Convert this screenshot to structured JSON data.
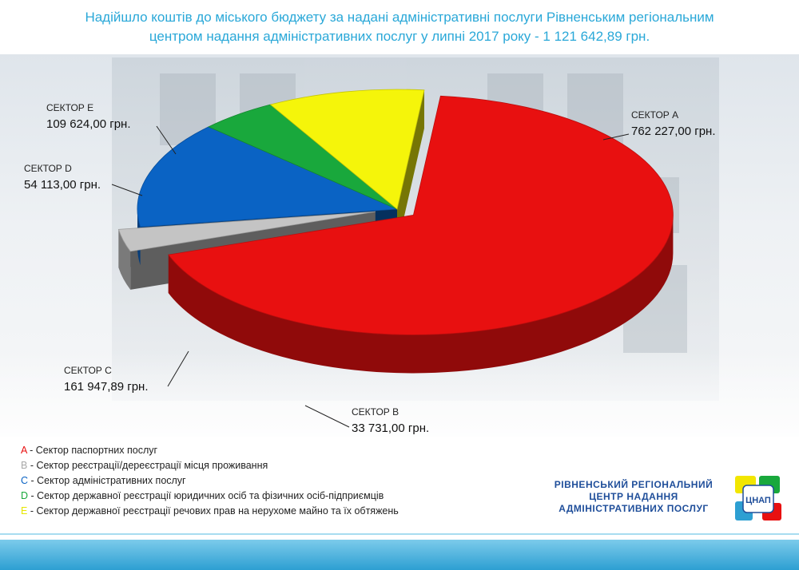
{
  "title": {
    "line1": "Надійшло коштів до міського бюджету за надані адміністративні послуги Рівненським регіональним",
    "line2": "центром надання адміністративних послуг у липні 2017 року - 1 121 642,89 грн."
  },
  "chart_data": {
    "type": "pie",
    "title": "Надійшло коштів до міського бюджету за надані адміністративні послуги Рівненським регіональним центром надання адміністративних послуг у липні 2017 року - 1 121 642,89 грн.",
    "total": 1121642.89,
    "slices": [
      {
        "key": "A",
        "name": "СЕКТОР А",
        "value": 762227.0,
        "value_label": "762 227,00 грн.",
        "color": "#e81010",
        "exploded": true
      },
      {
        "key": "B",
        "name": "СЕКТОР B",
        "value": 33731.0,
        "value_label": "33 731,00 грн.",
        "color": "#c4c4c4",
        "exploded": true
      },
      {
        "key": "C",
        "name": "СЕКТОР C",
        "value": 161947.89,
        "value_label": "161 947,89 грн.",
        "color": "#0a63c4",
        "exploded": false
      },
      {
        "key": "D",
        "name": "СЕКТОР D",
        "value": 54113.0,
        "value_label": "54 113,00 грн.",
        "color": "#19a83c",
        "exploded": false
      },
      {
        "key": "E",
        "name": "СЕКТОР E",
        "value": 109624.0,
        "value_label": "109 624,00 грн.",
        "color": "#f5f50a",
        "exploded": false
      }
    ]
  },
  "legend": [
    {
      "key": "A",
      "color": "#e81010",
      "text": " - Сектор паспортних послуг"
    },
    {
      "key": "B",
      "color": "#a8a8a8",
      "text": " - Сектор реєстрації/дереєстрації місця проживання"
    },
    {
      "key": "C",
      "color": "#0a63c4",
      "text": " - Сектор адміністративних послуг"
    },
    {
      "key": "D",
      "color": "#19a83c",
      "text": " - Сектор державної реєстрації юридичних осіб та фізичних осіб-підприємців"
    },
    {
      "key": "E",
      "color": "#e6e600",
      "text": " - Сектор державної реєстрації речових прав на нерухоме майно та їх обтяжень"
    }
  ],
  "organization": {
    "line1": "РІВНЕНСЬКИЙ РЕГІОНАЛЬНИЙ",
    "line2": "ЦЕНТР НАДАННЯ",
    "line3": "АДМІНІСТРАТИВНИХ ПОСЛУГ"
  },
  "logo": {
    "text": "ЦНАП",
    "icon": "cnap-logo-icon"
  }
}
